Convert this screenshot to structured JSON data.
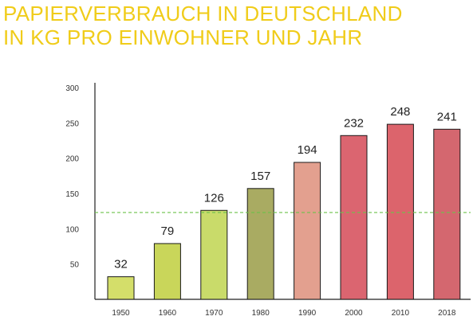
{
  "title": {
    "line1": "PAPIERVERBRAUCH IN DEUTSCHLAND",
    "line2": "IN KG PRO EINWOHNER UND JAHR"
  },
  "colors": {
    "title": "#f0cc1a",
    "reference_line": "#6cc24a"
  },
  "chart_data": {
    "type": "bar",
    "categories": [
      "1950",
      "1960",
      "1970",
      "1980",
      "1990",
      "2000",
      "2010",
      "2018"
    ],
    "values": [
      32,
      79,
      126,
      157,
      194,
      232,
      248,
      241
    ],
    "bar_colors": [
      "#d4de6a",
      "#c9d65a",
      "#c9db6a",
      "#a9ab62",
      "#e3a08f",
      "#db6570",
      "#dc646c",
      "#d4676f"
    ],
    "yticks": [
      50,
      100,
      150,
      200,
      250,
      300
    ],
    "ylim": [
      0,
      300
    ],
    "reference_line_value": 123,
    "title": "PAPIERVERBRAUCH IN DEUTSCHLAND IN KG PRO EINWOHNER UND JAHR",
    "xlabel": "",
    "ylabel": "",
    "grid": false
  }
}
